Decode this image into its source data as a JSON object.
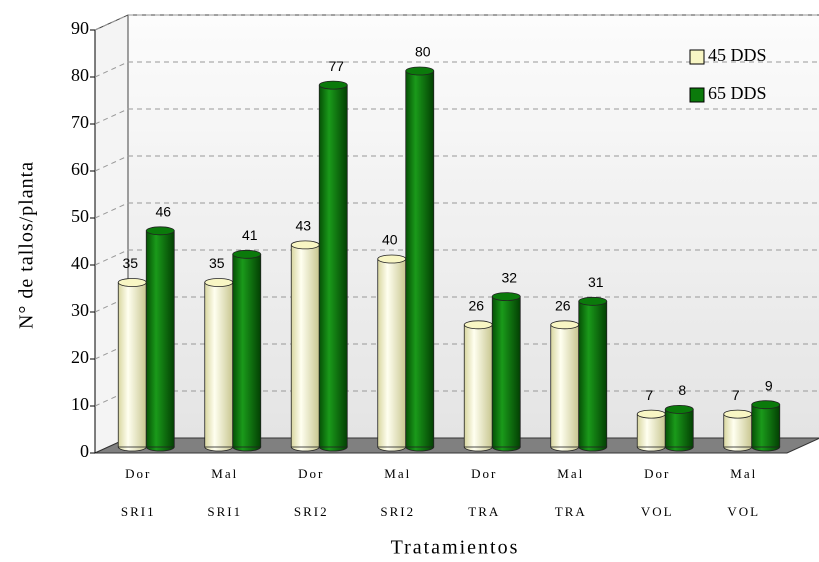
{
  "chart_data": {
    "type": "bar",
    "x_label": "Tratamientos",
    "y_label": "N° de tallos/planta",
    "categories": [
      [
        "Dor",
        "SRI1"
      ],
      [
        "Mal",
        "SRI1"
      ],
      [
        "Dor",
        "SRI2"
      ],
      [
        "Mal",
        "SRI2"
      ],
      [
        "Dor",
        "TRA"
      ],
      [
        "Mal",
        "TRA"
      ],
      [
        "Dor",
        "VOL"
      ],
      [
        "Mal",
        "VOL"
      ]
    ],
    "series": [
      {
        "name": "45 DDS",
        "color": "#f8f6c4",
        "values": [
          35,
          35,
          43,
          40,
          26,
          26,
          7,
          7
        ]
      },
      {
        "name": "65 DDS",
        "color": "#0b7a0b",
        "values": [
          46,
          41,
          77,
          80,
          32,
          31,
          8,
          9
        ]
      }
    ],
    "ylim": [
      0,
      90
    ],
    "yticks": [
      0,
      10,
      20,
      30,
      40,
      50,
      60,
      70,
      80,
      90
    ],
    "grid": true,
    "legend": "top-right"
  }
}
